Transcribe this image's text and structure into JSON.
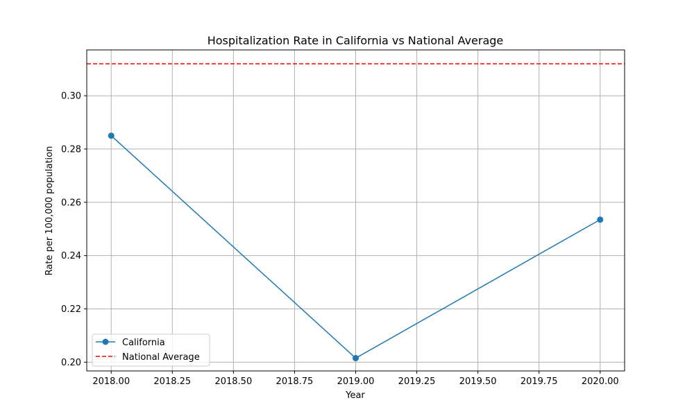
{
  "chart_data": {
    "type": "line",
    "title": "Hospitalization Rate in California vs National Average",
    "xlabel": "Year",
    "ylabel": "Rate per 100,000 population",
    "xlim": [
      2017.9,
      2020.1
    ],
    "ylim": [
      0.1967,
      0.3172
    ],
    "x_ticks": [
      2018.0,
      2018.25,
      2018.5,
      2018.75,
      2019.0,
      2019.25,
      2019.5,
      2019.75,
      2020.0
    ],
    "x_tick_labels": [
      "2018.00",
      "2018.25",
      "2018.50",
      "2018.75",
      "2019.00",
      "2019.25",
      "2019.50",
      "2019.75",
      "2020.00"
    ],
    "y_ticks": [
      0.2,
      0.22,
      0.24,
      0.26,
      0.28,
      0.3
    ],
    "y_tick_labels": [
      "0.20",
      "0.22",
      "0.24",
      "0.26",
      "0.28",
      "0.30"
    ],
    "grid": true,
    "legend_position": "lower-left",
    "series": [
      {
        "name": "California",
        "style": "solid-line-with-circle-markers",
        "color": "#1f77b4",
        "x": [
          2018,
          2019,
          2020
        ],
        "y": [
          0.285,
          0.2015,
          0.2535
        ]
      }
    ],
    "reference_lines": [
      {
        "name": "National Average",
        "style": "dashed",
        "color": "#ff0000",
        "y": 0.312
      }
    ]
  }
}
